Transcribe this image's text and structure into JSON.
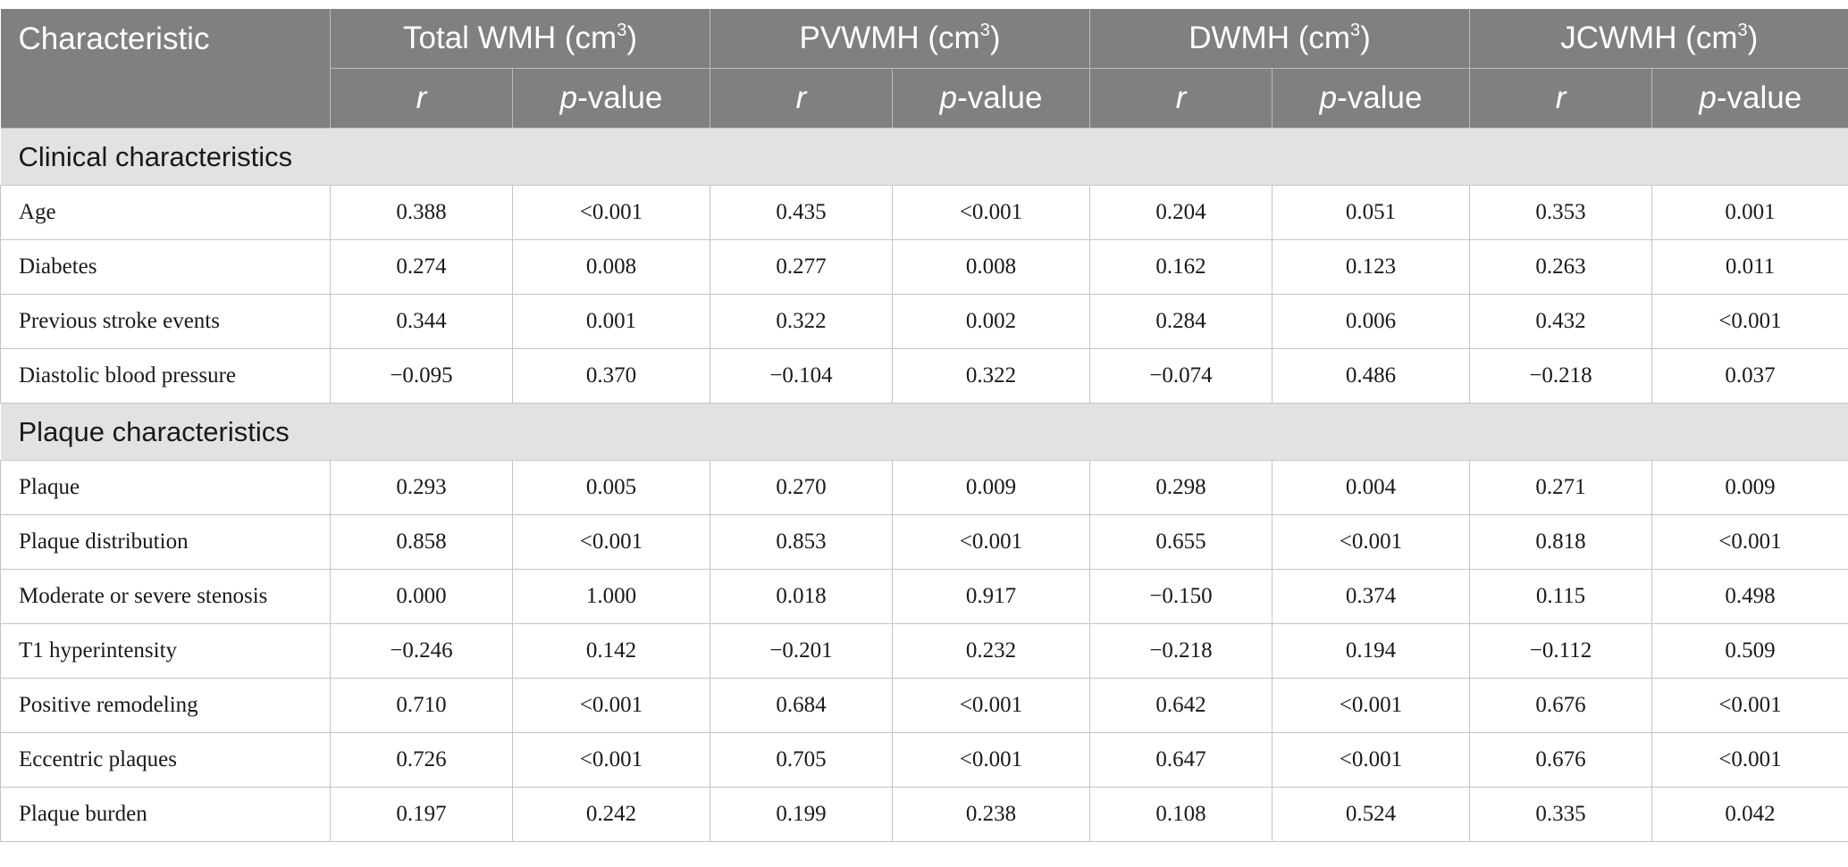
{
  "header": {
    "characteristic": "Characteristic",
    "groups": [
      {
        "name": "Total WMH (cm",
        "sup": "3",
        "close": ")"
      },
      {
        "name": "PVWMH (cm",
        "sup": "3",
        "close": ")"
      },
      {
        "name": "DWMH (cm",
        "sup": "3",
        "close": ")"
      },
      {
        "name": "JCWMH (cm",
        "sup": "3",
        "close": ")"
      }
    ],
    "r_label": "r",
    "p_italic": "p",
    "p_suffix": "-value"
  },
  "sections": [
    {
      "title": "Clinical characteristics",
      "rows": [
        {
          "label": "Age",
          "values": [
            "0.388",
            "<0.001",
            "0.435",
            "<0.001",
            "0.204",
            "0.051",
            "0.353",
            "0.001"
          ]
        },
        {
          "label": "Diabetes",
          "values": [
            "0.274",
            "0.008",
            "0.277",
            "0.008",
            "0.162",
            "0.123",
            "0.263",
            "0.011"
          ]
        },
        {
          "label": "Previous stroke events",
          "values": [
            "0.344",
            "0.001",
            "0.322",
            "0.002",
            "0.284",
            "0.006",
            "0.432",
            "<0.001"
          ]
        },
        {
          "label": "Diastolic blood pressure",
          "values": [
            "−0.095",
            "0.370",
            "−0.104",
            "0.322",
            "−0.074",
            "0.486",
            "−0.218",
            "0.037"
          ]
        }
      ]
    },
    {
      "title": "Plaque characteristics",
      "rows": [
        {
          "label": "Plaque",
          "values": [
            "0.293",
            "0.005",
            "0.270",
            "0.009",
            "0.298",
            "0.004",
            "0.271",
            "0.009"
          ]
        },
        {
          "label": "Plaque distribution",
          "values": [
            "0.858",
            "<0.001",
            "0.853",
            "<0.001",
            "0.655",
            "<0.001",
            "0.818",
            "<0.001"
          ]
        },
        {
          "label": "Moderate or severe stenosis",
          "values": [
            "0.000",
            "1.000",
            "0.018",
            "0.917",
            "−0.150",
            "0.374",
            "0.115",
            "0.498"
          ]
        },
        {
          "label": "T1 hyperintensity",
          "values": [
            "−0.246",
            "0.142",
            "−0.201",
            "0.232",
            "−0.218",
            "0.194",
            "−0.112",
            "0.509"
          ]
        },
        {
          "label": "Positive remodeling",
          "values": [
            "0.710",
            "<0.001",
            "0.684",
            "<0.001",
            "0.642",
            "<0.001",
            "0.676",
            "<0.001"
          ]
        },
        {
          "label": "Eccentric plaques",
          "values": [
            "0.726",
            "<0.001",
            "0.705",
            "<0.001",
            "0.647",
            "<0.001",
            "0.676",
            "<0.001"
          ]
        },
        {
          "label": "Plaque burden",
          "values": [
            "0.197",
            "0.242",
            "0.199",
            "0.238",
            "0.108",
            "0.524",
            "0.335",
            "0.042"
          ]
        }
      ]
    }
  ]
}
